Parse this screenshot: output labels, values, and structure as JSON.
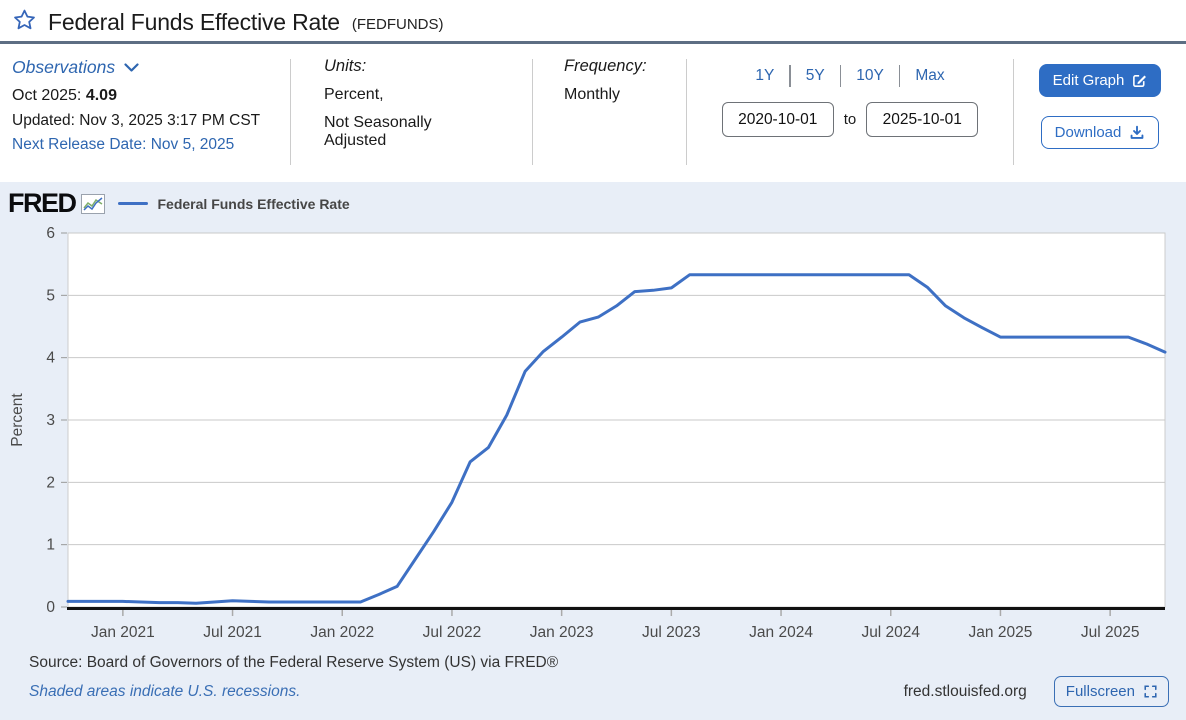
{
  "header": {
    "title": "Federal Funds Effective Rate",
    "series_id": "(FEDFUNDS)"
  },
  "info": {
    "observations_label": "Observations",
    "latest_label": "Oct 2025:",
    "latest_value": "4.09",
    "updated": "Updated: Nov 3, 2025 3:17 PM CST",
    "next_release": "Next Release Date: Nov 5, 2025",
    "units_label": "Units:",
    "units_line1": "Percent,",
    "units_line2": "Not Seasonally Adjusted",
    "frequency_label": "Frequency:",
    "frequency_value": "Monthly",
    "ranges": [
      "1Y",
      "5Y",
      "10Y",
      "Max"
    ],
    "date_start": "2020-10-01",
    "date_to_label": "to",
    "date_end": "2025-10-01",
    "edit_graph_label": "Edit Graph",
    "download_label": "Download"
  },
  "chart": {
    "logo_text": "FRED",
    "legend_label": "Federal Funds Effective Rate"
  },
  "chart_data": {
    "type": "line",
    "title": "Federal Funds Effective Rate",
    "ylabel": "Percent",
    "ylim": [
      0,
      6
    ],
    "yticks": [
      0,
      1,
      2,
      3,
      4,
      5,
      6
    ],
    "grid": true,
    "legend": "Federal Funds Effective Rate",
    "line_color": "#3e70c4",
    "x": [
      "2020-10",
      "2020-11",
      "2020-12",
      "2021-01",
      "2021-02",
      "2021-03",
      "2021-04",
      "2021-05",
      "2021-06",
      "2021-07",
      "2021-08",
      "2021-09",
      "2021-10",
      "2021-11",
      "2021-12",
      "2022-01",
      "2022-02",
      "2022-03",
      "2022-04",
      "2022-05",
      "2022-06",
      "2022-07",
      "2022-08",
      "2022-09",
      "2022-10",
      "2022-11",
      "2022-12",
      "2023-01",
      "2023-02",
      "2023-03",
      "2023-04",
      "2023-05",
      "2023-06",
      "2023-07",
      "2023-08",
      "2023-09",
      "2023-10",
      "2023-11",
      "2023-12",
      "2024-01",
      "2024-02",
      "2024-03",
      "2024-04",
      "2024-05",
      "2024-06",
      "2024-07",
      "2024-08",
      "2024-09",
      "2024-10",
      "2024-11",
      "2024-12",
      "2025-01",
      "2025-02",
      "2025-03",
      "2025-04",
      "2025-05",
      "2025-06",
      "2025-07",
      "2025-08",
      "2025-09",
      "2025-10"
    ],
    "values": [
      0.09,
      0.09,
      0.09,
      0.09,
      0.08,
      0.07,
      0.07,
      0.06,
      0.08,
      0.1,
      0.09,
      0.08,
      0.08,
      0.08,
      0.08,
      0.08,
      0.08,
      0.2,
      0.33,
      0.77,
      1.21,
      1.68,
      2.33,
      2.56,
      3.08,
      3.78,
      4.1,
      4.33,
      4.57,
      4.65,
      4.83,
      5.06,
      5.08,
      5.12,
      5.33,
      5.33,
      5.33,
      5.33,
      5.33,
      5.33,
      5.33,
      5.33,
      5.33,
      5.33,
      5.33,
      5.33,
      5.33,
      5.13,
      4.83,
      4.64,
      4.48,
      4.33,
      4.33,
      4.33,
      4.33,
      4.33,
      4.33,
      4.33,
      4.33,
      4.22,
      4.09
    ],
    "xticks": [
      {
        "index": 3,
        "label": "Jan 2021"
      },
      {
        "index": 9,
        "label": "Jul 2021"
      },
      {
        "index": 15,
        "label": "Jan 2022"
      },
      {
        "index": 21,
        "label": "Jul 2022"
      },
      {
        "index": 27,
        "label": "Jan 2023"
      },
      {
        "index": 33,
        "label": "Jul 2023"
      },
      {
        "index": 39,
        "label": "Jan 2024"
      },
      {
        "index": 45,
        "label": "Jul 2024"
      },
      {
        "index": 51,
        "label": "Jan 2025"
      },
      {
        "index": 57,
        "label": "Jul 2025"
      }
    ]
  },
  "footer": {
    "source": "Source: Board of Governors of the Federal Reserve System (US) via FRED®",
    "recessions_note": "Shaded areas indicate U.S. recessions.",
    "site": "fred.stlouisfed.org",
    "fullscreen_label": "Fullscreen"
  },
  "colors": {
    "accent_link": "#2e66b0",
    "button_blue": "#2e6dc4",
    "series_line": "#3e70c4",
    "chart_background": "#e8eef7",
    "title_rule": "#5d6e83"
  }
}
